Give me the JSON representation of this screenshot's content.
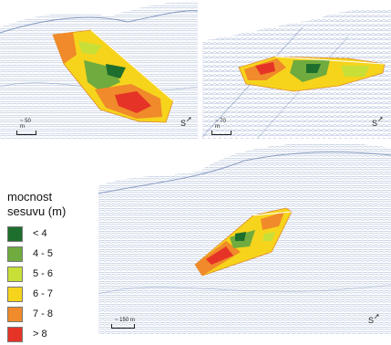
{
  "legend": {
    "title_line1": "mocnost",
    "title_line2": "sesuvu (m)",
    "items": [
      {
        "label": "< 4",
        "color": "#1e6e2d"
      },
      {
        "label": "4 - 5",
        "color": "#6fab3e"
      },
      {
        "label": "5 - 6",
        "color": "#c8df38"
      },
      {
        "label": "6 - 7",
        "color": "#f6d41c"
      },
      {
        "label": "7 - 8",
        "color": "#f08a2a"
      },
      {
        "label": "> 8",
        "color": "#e63327"
      }
    ]
  },
  "panels": [
    {
      "name": "top-left",
      "scale_label": "~ 50 m",
      "north_label": "S"
    },
    {
      "name": "top-right",
      "scale_label": "~ 70 m",
      "north_label": "S"
    },
    {
      "name": "bottom",
      "scale_label": "~ 150 m",
      "north_label": "S"
    }
  ],
  "colors": {
    "point_cloud": "#3c5f9e",
    "background": "#ffffff"
  }
}
